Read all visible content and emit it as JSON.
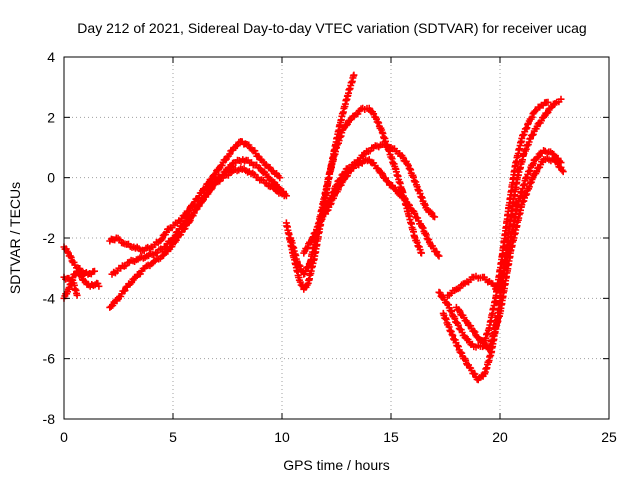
{
  "chart_data": {
    "type": "scatter",
    "title": "Day 212 of 2021, Sidereal Day-to-day VTEC variation (SDTVAR) for receiver ucag",
    "xlabel": "GPS time / hours",
    "ylabel": "SDTVAR / TECUs",
    "xlim": [
      0,
      25
    ],
    "ylim": [
      -8,
      4
    ],
    "x_ticks": [
      "0",
      "5",
      "10",
      "15",
      "20",
      "25"
    ],
    "y_ticks": [
      "-8",
      "-6",
      "-4",
      "-2",
      "0",
      "2",
      "4"
    ],
    "grid": true,
    "marker": "plus",
    "color": "#ff0000",
    "series": [
      {
        "x": [
          0.0,
          0.3,
          0.6,
          0.9,
          1.2,
          1.5,
          1.6
        ],
        "y": [
          -3.3,
          -3.4,
          -3.1,
          -3.4,
          -3.6,
          -3.5,
          -3.6
        ]
      },
      {
        "x": [
          0.0,
          0.2,
          0.5,
          0.8,
          1.1,
          1.4
        ],
        "y": [
          -2.3,
          -2.5,
          -2.9,
          -3.1,
          -3.2,
          -3.1
        ]
      },
      {
        "x": [
          0.0,
          0.2,
          0.4,
          0.6
        ],
        "y": [
          -4.0,
          -3.7,
          -3.4,
          -3.9
        ]
      },
      {
        "x": [
          2.1,
          2.4,
          2.8,
          3.2,
          3.6,
          4.0,
          4.4,
          4.8,
          5.2,
          5.6,
          6.0,
          6.3,
          6.6,
          6.9,
          7.2,
          7.5,
          7.8,
          8.1,
          8.4,
          8.7,
          9.0,
          9.3,
          9.6,
          9.9
        ],
        "y": [
          -2.1,
          -2.0,
          -2.2,
          -2.3,
          -2.4,
          -2.3,
          -2.1,
          -1.7,
          -1.5,
          -1.2,
          -0.8,
          -0.5,
          -0.2,
          0.1,
          0.4,
          0.7,
          1.0,
          1.2,
          1.1,
          0.9,
          0.6,
          0.4,
          0.2,
          0.0
        ]
      },
      {
        "x": [
          2.2,
          2.6,
          3.0,
          3.4,
          3.8,
          4.2,
          4.6,
          5.0,
          5.4,
          5.8,
          6.2,
          6.6,
          7.0,
          7.4,
          7.8,
          8.2,
          8.6,
          9.0,
          9.4,
          9.8,
          10.2
        ],
        "y": [
          -3.2,
          -3.0,
          -2.8,
          -2.7,
          -2.6,
          -2.5,
          -2.3,
          -2.0,
          -1.6,
          -1.3,
          -0.9,
          -0.5,
          -0.1,
          0.2,
          0.5,
          0.6,
          0.5,
          0.3,
          0.0,
          -0.3,
          -0.6
        ]
      },
      {
        "x": [
          2.1,
          2.5,
          2.9,
          3.3,
          3.7,
          4.1,
          4.5,
          4.9,
          5.3,
          5.7,
          6.1,
          6.5,
          6.9,
          7.3,
          7.7,
          8.1,
          8.5,
          8.9,
          9.3,
          9.7,
          10.1
        ],
        "y": [
          -4.3,
          -4.0,
          -3.6,
          -3.3,
          -3.0,
          -2.8,
          -2.6,
          -2.3,
          -1.9,
          -1.5,
          -1.0,
          -0.6,
          -0.2,
          0.0,
          0.2,
          0.3,
          0.2,
          0.0,
          -0.2,
          -0.4,
          -0.6
        ]
      },
      {
        "x": [
          10.2,
          10.5,
          10.8,
          11.0,
          11.2,
          11.5,
          11.8,
          12.1,
          12.4,
          12.7,
          13.0,
          13.3
        ],
        "y": [
          -1.5,
          -2.5,
          -3.4,
          -3.7,
          -3.5,
          -2.6,
          -1.4,
          -0.2,
          0.9,
          1.9,
          2.7,
          3.4
        ]
      },
      {
        "x": [
          10.4,
          10.7,
          11.0,
          11.3,
          11.6,
          11.9,
          12.2,
          12.5,
          12.8,
          13.1,
          13.4,
          13.7,
          14.0,
          14.3,
          14.6,
          14.9,
          15.2,
          15.5,
          15.8,
          16.1,
          16.4
        ],
        "y": [
          -2.0,
          -2.8,
          -3.2,
          -2.8,
          -1.8,
          -0.8,
          0.2,
          1.0,
          1.6,
          1.9,
          2.1,
          2.3,
          2.3,
          2.0,
          1.5,
          0.9,
          0.3,
          -0.4,
          -1.2,
          -2.0,
          -2.5
        ]
      },
      {
        "x": [
          11.0,
          11.4,
          11.8,
          12.2,
          12.6,
          13.0,
          13.4,
          13.8,
          14.2,
          14.6,
          15.0,
          15.4,
          15.8,
          16.2,
          16.6,
          17.0
        ],
        "y": [
          -2.5,
          -2.0,
          -1.4,
          -0.7,
          -0.1,
          0.3,
          0.5,
          0.8,
          1.0,
          1.1,
          1.0,
          0.8,
          0.4,
          -0.3,
          -1.0,
          -1.3
        ]
      },
      {
        "x": [
          12.0,
          12.4,
          12.8,
          13.2,
          13.6,
          14.0,
          14.4,
          14.8,
          15.2,
          15.6,
          16.0,
          16.4,
          16.8,
          17.2
        ],
        "y": [
          -1.2,
          -0.6,
          -0.1,
          0.3,
          0.5,
          0.6,
          0.3,
          -0.1,
          -0.4,
          -0.7,
          -1.1,
          -1.6,
          -2.2,
          -2.6
        ]
      },
      {
        "x": [
          17.2,
          17.6,
          18.0,
          18.4,
          18.8,
          19.2,
          19.5,
          19.8,
          20.1,
          20.4,
          20.7,
          21.0,
          21.3,
          21.6,
          21.9,
          22.2
        ],
        "y": [
          -3.8,
          -4.2,
          -4.8,
          -5.3,
          -5.6,
          -5.6,
          -5.0,
          -4.0,
          -2.6,
          -1.0,
          0.4,
          1.3,
          1.8,
          2.2,
          2.4,
          2.5
        ]
      },
      {
        "x": [
          17.4,
          17.8,
          18.2,
          18.6,
          19.0,
          19.3,
          19.6,
          19.9,
          20.2,
          20.5,
          20.8,
          21.1,
          21.4,
          21.7,
          22.0,
          22.3,
          22.6,
          22.8
        ],
        "y": [
          -4.5,
          -5.2,
          -5.8,
          -6.3,
          -6.7,
          -6.5,
          -5.8,
          -4.6,
          -3.0,
          -1.3,
          0.0,
          0.8,
          1.3,
          1.7,
          2.0,
          2.3,
          2.5,
          2.6
        ]
      },
      {
        "x": [
          17.6,
          18.0,
          18.4,
          18.8,
          19.2,
          19.6,
          20.0,
          20.4,
          20.8,
          21.2,
          21.6,
          22.0,
          22.4,
          22.8
        ],
        "y": [
          -3.9,
          -3.7,
          -3.5,
          -3.3,
          -3.3,
          -3.5,
          -3.8,
          -2.4,
          -0.9,
          0.0,
          0.6,
          0.9,
          0.8,
          0.5
        ]
      },
      {
        "x": [
          18.0,
          18.5,
          19.0,
          19.5,
          20.0,
          20.5,
          21.0,
          21.5,
          22.0,
          22.5,
          22.9
        ],
        "y": [
          -4.3,
          -4.8,
          -5.3,
          -5.7,
          -4.5,
          -2.4,
          -0.9,
          0.0,
          0.6,
          0.6,
          0.2
        ]
      }
    ]
  }
}
